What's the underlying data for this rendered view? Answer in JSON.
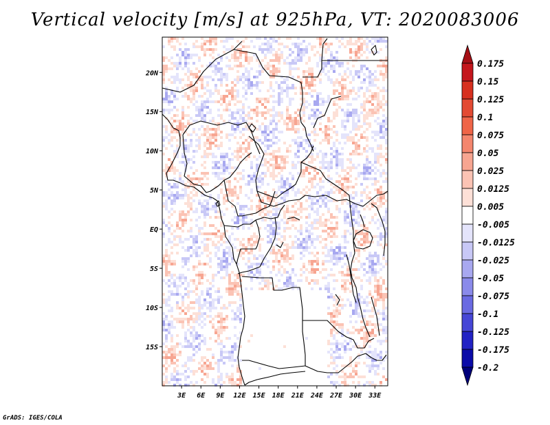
{
  "title": "Vertical velocity [m/s] at 925hPa, VT: 2020083006",
  "credit": "GrADS: IGES/COLA",
  "map": {
    "lon_range": [
      0,
      35
    ],
    "lat_range": [
      -20,
      24.5
    ],
    "lat_ticks": [
      {
        "value": 20,
        "label": "20N"
      },
      {
        "value": 15,
        "label": "15N"
      },
      {
        "value": 10,
        "label": "10N"
      },
      {
        "value": 5,
        "label": "5N"
      },
      {
        "value": 0,
        "label": "EQ"
      },
      {
        "value": -5,
        "label": "5S"
      },
      {
        "value": -10,
        "label": "10S"
      },
      {
        "value": -15,
        "label": "15S"
      }
    ],
    "lon_ticks": [
      {
        "value": 3,
        "label": "3E"
      },
      {
        "value": 6,
        "label": "6E"
      },
      {
        "value": 9,
        "label": "9E"
      },
      {
        "value": 12,
        "label": "12E"
      },
      {
        "value": 15,
        "label": "15E"
      },
      {
        "value": 18,
        "label": "18E"
      },
      {
        "value": 21,
        "label": "21E"
      },
      {
        "value": 24,
        "label": "24E"
      },
      {
        "value": 27,
        "label": "27E"
      },
      {
        "value": 30,
        "label": "30E"
      },
      {
        "value": 33,
        "label": "33E"
      }
    ],
    "field_pattern": "noisy-positive-negative-speckle",
    "boundary_color": "#000000"
  },
  "colorbar": {
    "labels": [
      "0.175",
      "0.15",
      "0.125",
      "0.1",
      "0.075",
      "0.05",
      "0.025",
      "0.0125",
      "0.005",
      "-0.005",
      "-0.0125",
      "-0.025",
      "-0.05",
      "-0.075",
      "-0.1",
      "-0.125",
      "-0.175",
      "-0.2"
    ],
    "colors": [
      "#a50f15",
      "#c4161c",
      "#d7301f",
      "#e34a33",
      "#ef6548",
      "#f4866e",
      "#f7a591",
      "#fbc3b4",
      "#fde0d7",
      "#ffffff",
      "#e4e4fb",
      "#c8c8f6",
      "#a8a8f0",
      "#8a8aea",
      "#6a6ae2",
      "#4646d6",
      "#2222c4",
      "#0b0ba8",
      "#00007a"
    ]
  }
}
